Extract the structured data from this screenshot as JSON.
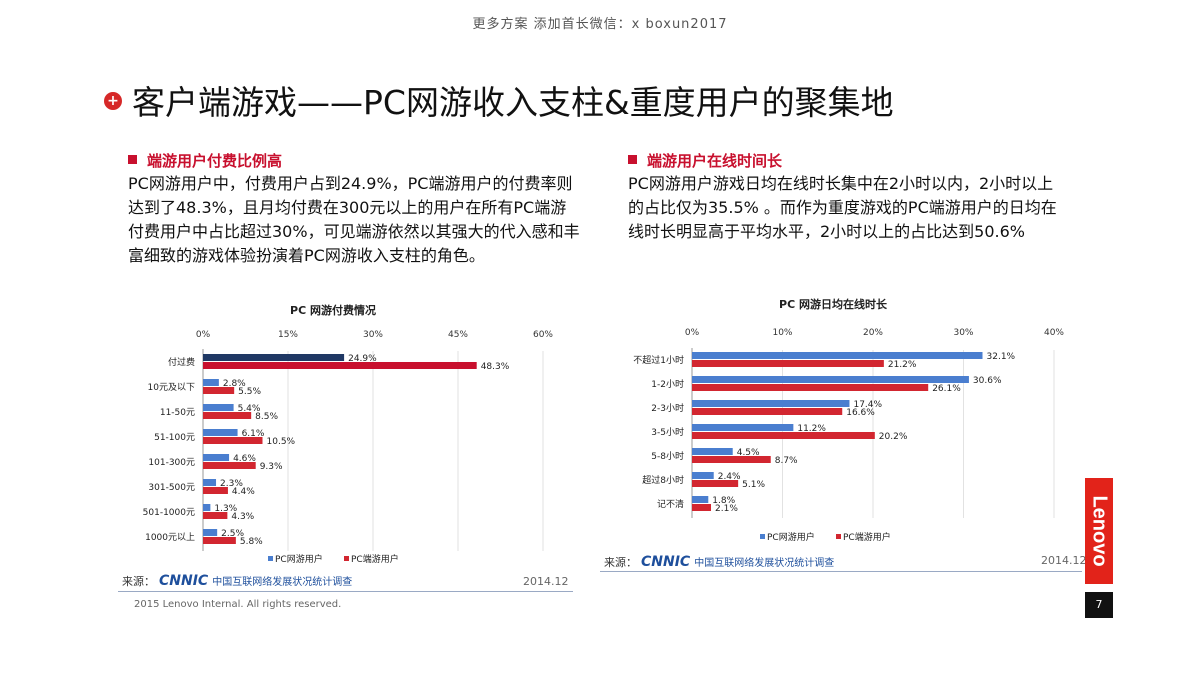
{
  "top_note": "更多方案 添加首长微信：x boxun2017",
  "title": "客户端游戏——PC网游收入支柱&重度用户的聚集地",
  "left": {
    "heading": "端游用户付费比例高",
    "paragraph": "PC网游用户中，付费用户占到24.9%，PC端游用户的付费率则达到了48.3%，且月均付费在300元以上的用户在所有PC端游付费用户中占比超过30%，可见端游依然以其强大的代入感和丰富细致的游戏体验扮演着PC网游收入支柱的角色。"
  },
  "right": {
    "heading": "端游用户在线时间长",
    "paragraph": "PC网游用户游戏日均在线时长集中在2小时以内，2小时以上的占比仅为35.5% 。而作为重度游戏的PC端游用户的日均在线时长明显高于平均水平，2小时以上的占比达到50.6%"
  },
  "chart_data": [
    {
      "type": "bar",
      "orientation": "horizontal",
      "title": "PC 网游付费情况",
      "categories": [
        "付过费",
        "10元及以下",
        "11-50元",
        "51-100元",
        "101-300元",
        "301-500元",
        "501-1000元",
        "1000元以上"
      ],
      "series": [
        {
          "name": "PC网游用户",
          "values": [
            24.9,
            2.8,
            5.4,
            6.1,
            4.6,
            2.3,
            1.3,
            2.5
          ]
        },
        {
          "name": "PC端游用户",
          "values": [
            48.3,
            5.5,
            8.5,
            10.5,
            9.3,
            4.4,
            4.3,
            5.8
          ]
        }
      ],
      "first_row_colors": [
        "#1f3864",
        "#c8102e"
      ],
      "xlim": [
        0,
        60
      ],
      "ticks": [
        "0%",
        "15%",
        "30%",
        "45%",
        "60%"
      ],
      "legend_position": "bottom",
      "source": {
        "label": "来源：",
        "logo": "CNNIC",
        "org": "中国互联网络发展状况统计调查",
        "date": "2014.12"
      }
    },
    {
      "type": "bar",
      "orientation": "horizontal",
      "title": "PC 网游日均在线时长",
      "categories": [
        "不超过1小时",
        "1-2小时",
        "2-3小时",
        "3-5小时",
        "5-8小时",
        "超过8小时",
        "记不清"
      ],
      "series": [
        {
          "name": "PC网游用户",
          "values": [
            32.1,
            30.6,
            17.4,
            11.2,
            4.5,
            2.4,
            1.8
          ]
        },
        {
          "name": "PC端游用户",
          "values": [
            21.2,
            26.1,
            16.6,
            20.2,
            8.7,
            5.1,
            2.1
          ]
        }
      ],
      "xlim": [
        0,
        40
      ],
      "ticks": [
        "0%",
        "10%",
        "20%",
        "30%",
        "40%"
      ],
      "legend_position": "bottom",
      "source": {
        "label": "来源：",
        "logo": "CNNIC",
        "org": "中国互联网络发展状况统计调查",
        "date": "2014.12"
      }
    }
  ],
  "colors": {
    "blue": "#4a7ecf",
    "red": "#d22630",
    "dark_blue": "#1f3864",
    "accent": "#c8102e"
  },
  "copyright": "2015 Lenovo Internal. All rights reserved.",
  "brand": "Lenovo",
  "page_number": "7"
}
